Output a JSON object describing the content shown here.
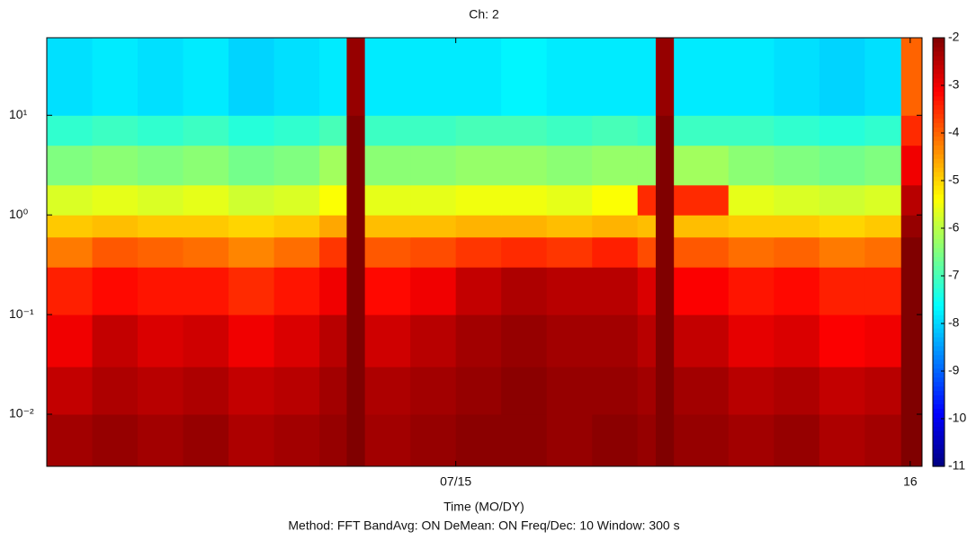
{
  "chart_data": {
    "type": "heatmap",
    "title": "Ch: 2",
    "xlabel": "Time (MO/DY)",
    "footer": "Method: FFT  BandAvg: ON  DeMean: ON  Freq/Dec: 10  Window: 300 s",
    "x_edges": [
      14.1,
      14.2,
      14.3,
      14.4,
      14.5,
      14.6,
      14.7,
      14.76,
      14.8,
      14.9,
      15.0,
      15.1,
      15.2,
      15.3,
      15.4,
      15.44,
      15.48,
      15.6,
      15.7,
      15.8,
      15.9,
      15.98,
      16.026
    ],
    "y_edges": [
      0.003,
      0.01,
      0.03,
      0.1,
      0.3,
      0.6,
      1,
      2,
      5,
      10,
      60
    ],
    "z": [
      [
        -2.3,
        -2.2,
        -2.3,
        -2.2,
        -2.4,
        -2.3,
        -2.2,
        -2.0,
        -2.3,
        -2.2,
        -2.1,
        -2.1,
        -2.2,
        -2.1,
        -2.2,
        -2.0,
        -2.2,
        -2.3,
        -2.2,
        -2.4,
        -2.3,
        -2.0
      ],
      [
        -2.6,
        -2.4,
        -2.5,
        -2.4,
        -2.6,
        -2.5,
        -2.3,
        -2.0,
        -2.4,
        -2.3,
        -2.2,
        -2.1,
        -2.2,
        -2.2,
        -2.3,
        -2.0,
        -2.3,
        -2.5,
        -2.4,
        -2.6,
        -2.5,
        -2.0
      ],
      [
        -3.0,
        -2.6,
        -2.8,
        -2.7,
        -3.0,
        -2.8,
        -2.5,
        -2.0,
        -2.7,
        -2.5,
        -2.3,
        -2.2,
        -2.3,
        -2.3,
        -2.5,
        -2.0,
        -2.6,
        -2.9,
        -2.8,
        -3.1,
        -3.0,
        -2.0
      ],
      [
        -3.4,
        -3.2,
        -3.3,
        -3.3,
        -3.5,
        -3.3,
        -3.0,
        -2.0,
        -3.2,
        -3.0,
        -2.6,
        -2.4,
        -2.5,
        -2.5,
        -2.8,
        -2.0,
        -3.1,
        -3.3,
        -3.2,
        -3.4,
        -3.4,
        -2.0
      ],
      [
        -4.2,
        -3.9,
        -4.0,
        -4.1,
        -4.3,
        -4.1,
        -3.6,
        -2.0,
        -3.9,
        -3.8,
        -3.6,
        -3.5,
        -3.6,
        -3.4,
        -3.8,
        -2.0,
        -3.9,
        -4.1,
        -4.0,
        -4.2,
        -4.1,
        -2.0
      ],
      [
        -4.9,
        -4.8,
        -4.9,
        -4.9,
        -5.0,
        -4.9,
        -4.6,
        -2.0,
        -4.8,
        -4.8,
        -4.7,
        -4.7,
        -4.8,
        -4.7,
        -4.8,
        -2.0,
        -4.8,
        -4.9,
        -4.9,
        -5.0,
        -4.9,
        -2.2
      ],
      [
        -5.7,
        -5.6,
        -5.7,
        -5.6,
        -5.8,
        -5.7,
        -5.4,
        -2.0,
        -5.6,
        -5.6,
        -5.5,
        -5.5,
        -5.6,
        -5.4,
        -3.5,
        -2.0,
        -3.5,
        -5.6,
        -5.7,
        -5.8,
        -5.7,
        -2.5
      ],
      [
        -6.5,
        -6.4,
        -6.5,
        -6.4,
        -6.6,
        -6.5,
        -6.2,
        -2.0,
        -6.4,
        -6.4,
        -6.3,
        -6.3,
        -6.4,
        -6.3,
        -6.3,
        -2.0,
        -6.2,
        -6.4,
        -6.5,
        -6.6,
        -6.5,
        -3.0
      ],
      [
        -7.2,
        -7.1,
        -7.2,
        -7.1,
        -7.3,
        -7.2,
        -7.0,
        -2.0,
        -7.1,
        -7.1,
        -7.0,
        -7.0,
        -7.1,
        -7.0,
        -7.1,
        -2.0,
        -7.1,
        -7.1,
        -7.2,
        -7.3,
        -7.2,
        -3.5
      ],
      [
        -7.9,
        -7.8,
        -7.9,
        -7.8,
        -8.0,
        -7.9,
        -7.8,
        -2.2,
        -7.8,
        -7.8,
        -7.8,
        -7.7,
        -7.8,
        -7.8,
        -7.8,
        -2.2,
        -7.8,
        -7.8,
        -7.9,
        -8.0,
        -7.9,
        -4.0
      ]
    ],
    "xlim": [
      14.1,
      16.026
    ],
    "xticks": [
      {
        "value": 15,
        "label": "07/15"
      },
      {
        "value": 16,
        "label": "16"
      }
    ],
    "ylim": [
      0.003,
      60
    ],
    "yscale": "log",
    "yticks": [
      {
        "value": 0.01,
        "label": "10⁻²"
      },
      {
        "value": 0.1,
        "label": "10⁻¹"
      },
      {
        "value": 1,
        "label": "10⁰"
      },
      {
        "value": 10,
        "label": "10¹"
      }
    ],
    "colormap": "jet",
    "clim": [
      -11,
      -2
    ],
    "cticks": [
      -2,
      -3,
      -4,
      -5,
      -6,
      -7,
      -8,
      -9,
      -10,
      -11
    ]
  }
}
